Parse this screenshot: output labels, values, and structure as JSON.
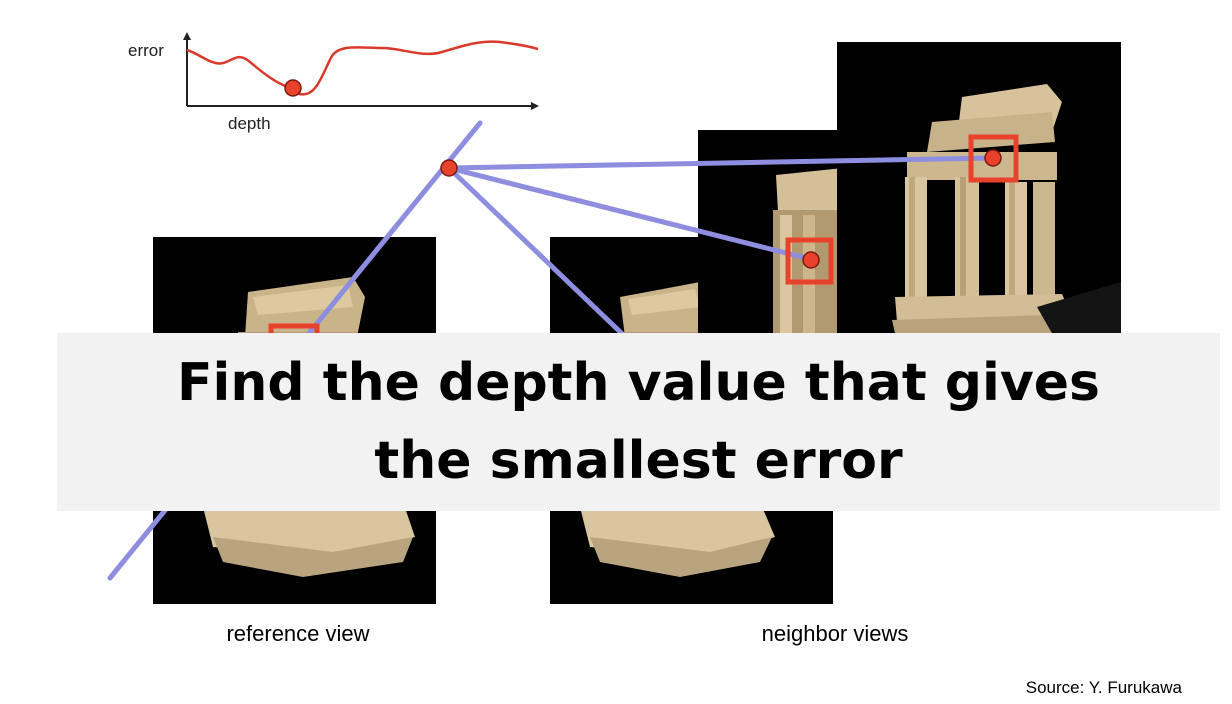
{
  "plot": {
    "y_label": "error",
    "x_label": "depth",
    "curve_color": "#d93a2b",
    "marker_color": "#e8412c"
  },
  "views": {
    "reference_caption": "reference view",
    "neighbor_caption": "neighbor views"
  },
  "banner": {
    "text": "Find the depth value that gives the smallest error"
  },
  "source": {
    "text": "Source: Y. Furukawa"
  },
  "colors": {
    "ray": "#8e8ee0",
    "patch_box": "#e8412c",
    "photo_background": "#000000",
    "banner_background": "#f2f2f2"
  },
  "images": {
    "photo_subject": "temple-model-photo"
  }
}
